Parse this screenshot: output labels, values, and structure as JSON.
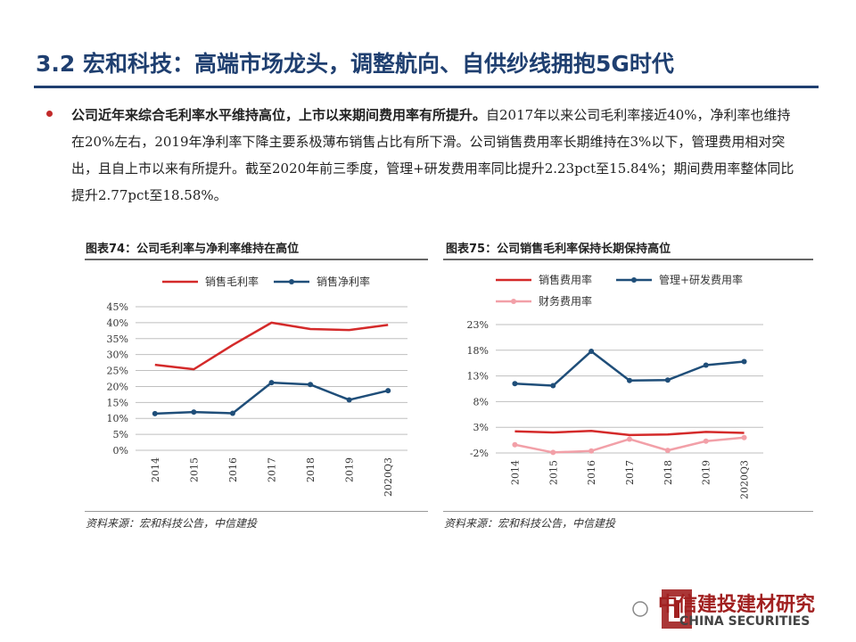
{
  "slide": {
    "title": "3.2 宏和科技：高端市场龙头，调整航向、自供纱线拥抱5G时代",
    "bullet_bold": "公司近年来综合毛利率水平维持高位，上市以来期间费用率有所提升。",
    "bullet_rest": "自2017年以来公司毛利率接近40%，净利率也维持在20%左右，2019年净利率下降主要系极薄布销售占比有所下滑。公司销售费用率长期维持在3%以下，管理费用相对突出，且自上市以来有所提升。截至2020年前三季度，管理+研发费用率同比提升2.23pct至15.84%；期间费用率整体同比提升2.77pct至18.58%。"
  },
  "chart_left": {
    "heading": "图表74：公司毛利率与净利率维持在高位",
    "source": "资料来源：宏和科技公告，中信建投"
  },
  "chart_right": {
    "heading": "图表75：公司销售毛利率保持长期保持高位",
    "source": "资料来源：宏和科技公告，中信建投"
  },
  "watermark": {
    "text": "中信建投建材研究",
    "sub": "CHINA SECURITIES"
  },
  "chart_data": [
    {
      "type": "line",
      "categories": [
        "2014",
        "2015",
        "2016",
        "2017",
        "2018",
        "2019",
        "2020Q3"
      ],
      "series": [
        {
          "name": "销售毛利率",
          "color": "#d42a2a",
          "values": [
            26.8,
            25.4,
            33.0,
            40.0,
            38.0,
            37.7,
            39.3
          ]
        },
        {
          "name": "销售净利率",
          "color": "#1f4e79",
          "values": [
            11.5,
            12.0,
            11.6,
            21.2,
            20.6,
            15.8,
            18.7
          ]
        }
      ],
      "yticks": [
        "0%",
        "5%",
        "10%",
        "15%",
        "20%",
        "25%",
        "30%",
        "35%",
        "40%",
        "45%"
      ],
      "ylim": [
        0,
        45
      ],
      "legend": "top"
    },
    {
      "type": "line",
      "categories": [
        "2014",
        "2015",
        "2016",
        "2017",
        "2018",
        "2019",
        "2020Q3"
      ],
      "series": [
        {
          "name": "销售费用率",
          "color": "#d42a2a",
          "marker": false,
          "values": [
            2.2,
            2.0,
            2.3,
            1.5,
            1.6,
            2.1,
            1.9
          ]
        },
        {
          "name": "管理+研发费用率",
          "color": "#1f4e79",
          "marker": true,
          "values": [
            11.5,
            11.1,
            17.8,
            12.1,
            12.2,
            15.1,
            15.8
          ]
        },
        {
          "name": "财务费用率",
          "color": "#f2a0a8",
          "marker": true,
          "values": [
            -0.4,
            -1.9,
            -1.6,
            0.7,
            -1.5,
            0.3,
            1.0
          ]
        }
      ],
      "yticks": [
        "-2%",
        "3%",
        "8%",
        "13%",
        "18%",
        "23%"
      ],
      "ylim": [
        -2,
        23
      ],
      "legend": "top"
    }
  ]
}
